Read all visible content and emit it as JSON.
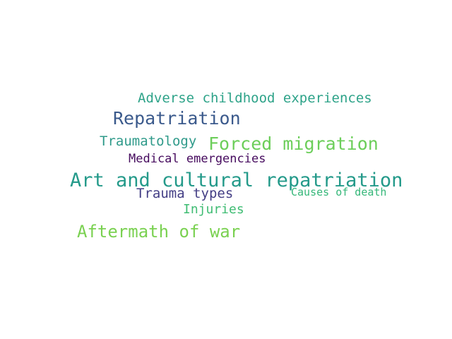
{
  "words": [
    {
      "text": "Adverse childhood experiences",
      "color": "#2ea389"
    },
    {
      "text": "Repatriation",
      "color": "#3b5a8c"
    },
    {
      "text": "Traumatology",
      "color": "#2f9a8a"
    },
    {
      "text": "Forced migration",
      "color": "#6cce5a"
    },
    {
      "text": "Medical emergencies",
      "color": "#460b5e"
    },
    {
      "text": "Art and cultural repatriation",
      "color": "#249a8a"
    },
    {
      "text": "Trauma types",
      "color": "#433e85"
    },
    {
      "text": "Causes of death",
      "color": "#35b779"
    },
    {
      "text": "Injuries",
      "color": "#3fbc73"
    },
    {
      "text": "Aftermath of war",
      "color": "#7ad151"
    }
  ]
}
